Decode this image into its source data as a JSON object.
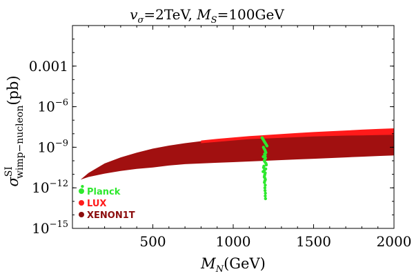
{
  "chart_data": {
    "type": "scatter",
    "title": "v_σ=2TeV, M_S=100GeV",
    "title_parts": {
      "v": "v",
      "v_sub": "σ",
      "eq1": "=2TeV, ",
      "M": "M",
      "M_sub": "S",
      "eq2": "=100GeV"
    },
    "xlabel_parts": {
      "M": "M",
      "sub": "N",
      "unit": "(GeV)"
    },
    "ylabel_parts": {
      "sigma": "σ",
      "sup": "SI",
      "sub": "wimp−nucleon",
      "unit": "(pb)"
    },
    "xlim": [
      0,
      2000
    ],
    "ylim_log10": [
      -15,
      0
    ],
    "x_ticks": [
      {
        "value": 500,
        "label": "500"
      },
      {
        "value": 1000,
        "label": "1000"
      },
      {
        "value": 1500,
        "label": "1500"
      },
      {
        "value": 2000,
        "label": "2000"
      }
    ],
    "y_ticks": [
      {
        "exp": -3,
        "base": "0.001",
        "sup": ""
      },
      {
        "exp": -6,
        "base": "10",
        "sup": "−6"
      },
      {
        "exp": -9,
        "base": "10",
        "sup": "−9"
      },
      {
        "exp": -12,
        "base": "10",
        "sup": "−12"
      },
      {
        "exp": -15,
        "base": "10",
        "sup": "−15"
      }
    ],
    "legend": [
      {
        "name": "Planck",
        "color": "#2ee82e"
      },
      {
        "name": "LUX",
        "color": "#ff1a1a"
      },
      {
        "name": "XENON1T",
        "color": "#8b0c0c"
      }
    ],
    "series": [
      {
        "name": "XENON1T",
        "color": "#a11010",
        "region": true,
        "x": [
          50,
          100,
          200,
          300,
          400,
          500,
          600,
          700,
          800,
          900,
          1000,
          1100,
          1200,
          1300,
          1400,
          1500,
          1600,
          1700,
          1800,
          1900,
          2000
        ],
        "upper_log10": [
          -11.4,
          -10.9,
          -10.2,
          -9.75,
          -9.4,
          -9.1,
          -8.88,
          -8.7,
          -8.55,
          -8.45,
          -8.35,
          -8.25,
          -8.18,
          -8.12,
          -8.06,
          -8.0,
          -7.95,
          -7.9,
          -7.86,
          -7.82,
          -7.8
        ],
        "lower_log10": [
          -11.4,
          -11.2,
          -10.95,
          -10.75,
          -10.6,
          -10.5,
          -10.35,
          -10.25,
          -10.2,
          -10.15,
          -10.1,
          -10.05,
          -10.0,
          -9.95,
          -9.9,
          -9.85,
          -9.8,
          -9.75,
          -9.7,
          -9.65,
          -9.6
        ]
      },
      {
        "name": "LUX",
        "color": "#ff1a1a",
        "region": true,
        "x": [
          800,
          900,
          1000,
          1100,
          1200,
          1300,
          1400,
          1500,
          1600,
          1700,
          1800,
          1900,
          2000
        ],
        "upper_log10": [
          -8.5,
          -8.38,
          -8.28,
          -8.18,
          -8.1,
          -8.02,
          -7.95,
          -7.88,
          -7.82,
          -7.76,
          -7.7,
          -7.65,
          -7.6
        ],
        "lower_log10": [
          -8.7,
          -8.6,
          -8.5,
          -8.4,
          -8.35,
          -8.3,
          -8.25,
          -8.2,
          -8.17,
          -8.14,
          -8.12,
          -8.1,
          -8.08
        ]
      },
      {
        "name": "Planck",
        "color": "#2ee82e",
        "x": [
          1180,
          1185,
          1190,
          1195,
          1200,
          1205,
          1210,
          1188,
          1192,
          1197,
          1200,
          1203,
          1195,
          1199,
          1187,
          1201,
          1196,
          1193,
          1198,
          1204,
          1206,
          1191,
          1189,
          1202,
          1194,
          1186,
          1199,
          1197,
          1195,
          1193,
          1198,
          1200,
          1196,
          1194,
          1199,
          1197,
          1198,
          1200,
          1199,
          1201,
          62
        ],
        "y_log10": [
          -8.3,
          -8.4,
          -8.5,
          -8.6,
          -8.7,
          -8.8,
          -8.9,
          -9.0,
          -9.1,
          -9.2,
          -9.3,
          -9.4,
          -9.5,
          -9.6,
          -9.7,
          -9.8,
          -9.9,
          -10.0,
          -10.1,
          -10.2,
          -10.3,
          -10.4,
          -10.5,
          -10.6,
          -10.7,
          -10.8,
          -10.9,
          -11.0,
          -11.1,
          -11.2,
          -11.3,
          -11.4,
          -11.5,
          -11.6,
          -11.8,
          -12.0,
          -12.2,
          -12.4,
          -12.6,
          -12.8,
          -11.9
        ]
      }
    ]
  }
}
